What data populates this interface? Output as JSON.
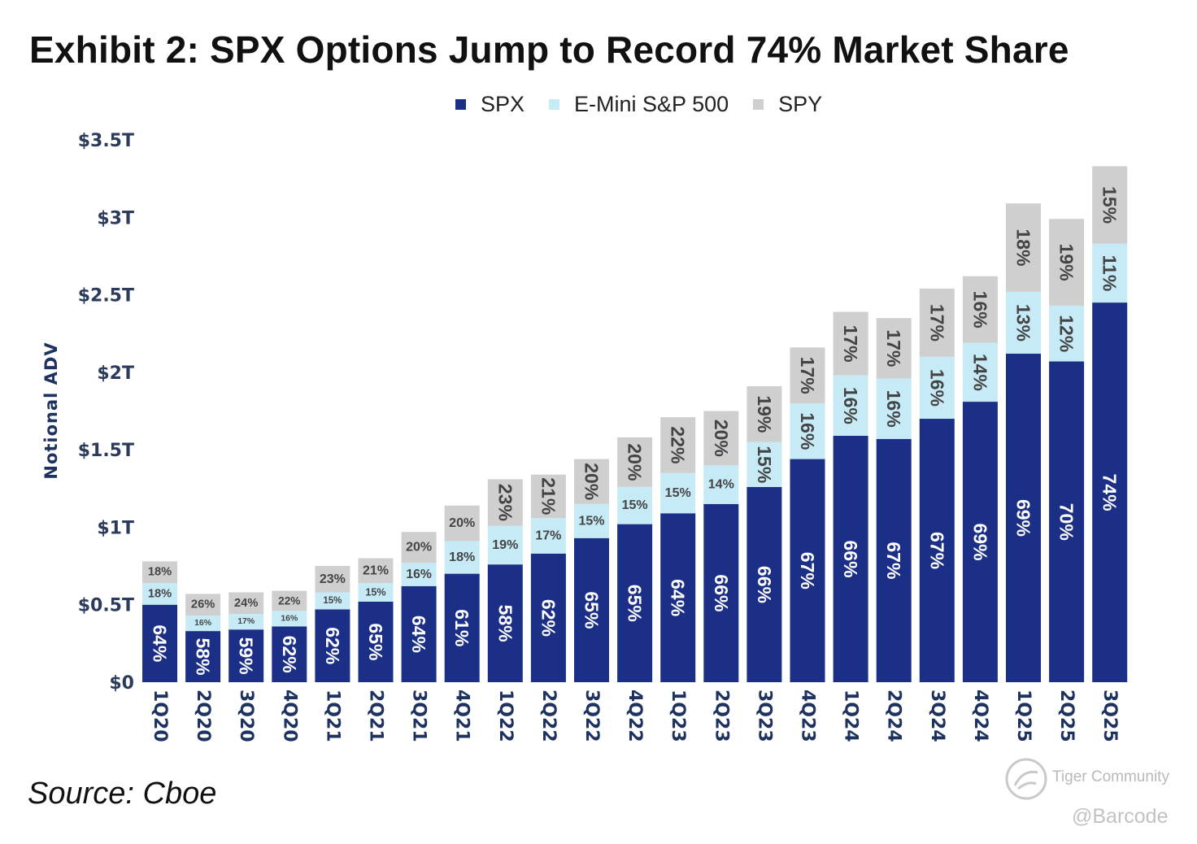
{
  "chart_data": {
    "type": "bar",
    "stacked": true,
    "title": "Exhibit 2: SPX Options Jump to Record 74% Market Share",
    "ylabel": "Notional ADV",
    "xlabel": "",
    "ylim": [
      0,
      3.5
    ],
    "y_ticks": [
      "$0",
      "$0.5T",
      "$1T",
      "$1.5T",
      "$2T",
      "$2.5T",
      "$3T",
      "$3.5T"
    ],
    "grid": false,
    "legend_position": "top",
    "categories": [
      "1Q20",
      "2Q20",
      "3Q20",
      "4Q20",
      "1Q21",
      "2Q21",
      "3Q21",
      "4Q21",
      "1Q22",
      "2Q22",
      "3Q22",
      "4Q22",
      "1Q23",
      "2Q23",
      "3Q23",
      "4Q23",
      "1Q24",
      "2Q24",
      "3Q24",
      "4Q24",
      "1Q25",
      "2Q25",
      "3Q25"
    ],
    "series": [
      {
        "name": "SPX",
        "color": "#1b2f86",
        "values": [
          0.5,
          0.33,
          0.34,
          0.36,
          0.47,
          0.52,
          0.62,
          0.7,
          0.76,
          0.83,
          0.93,
          1.02,
          1.09,
          1.15,
          1.26,
          1.44,
          1.59,
          1.57,
          1.7,
          1.81,
          2.12,
          2.07,
          2.45
        ],
        "labels": [
          "64%",
          "58%",
          "59%",
          "62%",
          "62%",
          "65%",
          "64%",
          "61%",
          "58%",
          "62%",
          "65%",
          "65%",
          "64%",
          "66%",
          "66%",
          "67%",
          "66%",
          "67%",
          "67%",
          "69%",
          "69%",
          "70%",
          "74%"
        ]
      },
      {
        "name": "E-Mini S&P 500",
        "color": "#c6eaf6",
        "values": [
          0.14,
          0.1,
          0.1,
          0.1,
          0.11,
          0.12,
          0.15,
          0.21,
          0.25,
          0.23,
          0.22,
          0.24,
          0.26,
          0.25,
          0.29,
          0.36,
          0.39,
          0.39,
          0.4,
          0.38,
          0.4,
          0.36,
          0.38
        ],
        "labels": [
          "18%",
          "16%",
          "17%",
          "16%",
          "15%",
          "15%",
          "16%",
          "18%",
          "19%",
          "17%",
          "15%",
          "15%",
          "15%",
          "14%",
          "15%",
          "16%",
          "16%",
          "16%",
          "16%",
          "14%",
          "13%",
          "12%",
          "11%"
        ]
      },
      {
        "name": "SPY",
        "color": "#cfcfcf",
        "values": [
          0.14,
          0.14,
          0.14,
          0.13,
          0.17,
          0.16,
          0.2,
          0.23,
          0.3,
          0.28,
          0.29,
          0.32,
          0.36,
          0.35,
          0.36,
          0.36,
          0.41,
          0.39,
          0.44,
          0.43,
          0.57,
          0.56,
          0.5
        ],
        "labels": [
          "18%",
          "26%",
          "24%",
          "22%",
          "23%",
          "21%",
          "20%",
          "20%",
          "23%",
          "21%",
          "20%",
          "20%",
          "22%",
          "20%",
          "19%",
          "17%",
          "17%",
          "17%",
          "17%",
          "16%",
          "18%",
          "19%",
          "15%"
        ]
      }
    ],
    "source": "Source: Cboe"
  },
  "watermark": {
    "brand": "Tiger Community",
    "handle": "@Barcode"
  }
}
